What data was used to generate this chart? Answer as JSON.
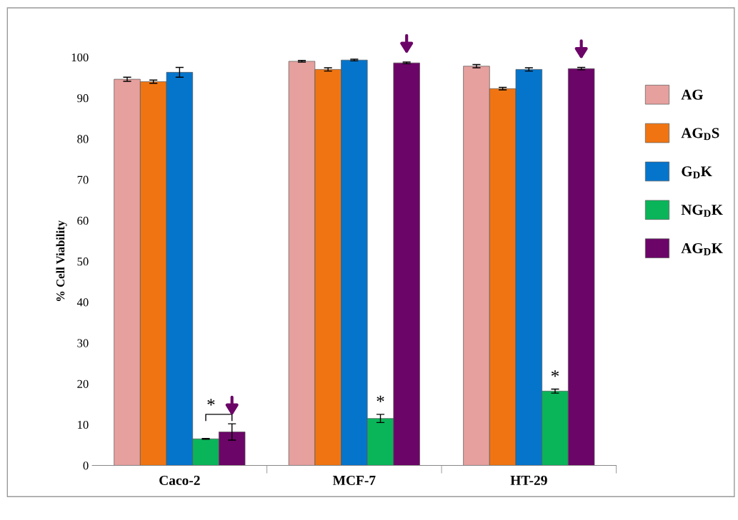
{
  "chart_data": {
    "type": "bar",
    "ylabel": "% Cell Viability",
    "categories": [
      "Caco-2",
      "MCF-7",
      "HT-29"
    ],
    "series": [
      {
        "name": "AG",
        "color": "#e6a09e",
        "values": [
          94.6,
          99.0,
          97.8
        ],
        "errors": [
          0.5,
          0.2,
          0.4
        ]
      },
      {
        "name": "AG$_{D}$S",
        "color": "#f07512",
        "values": [
          94.0,
          97.0,
          92.3
        ],
        "errors": [
          0.4,
          0.4,
          0.3
        ]
      },
      {
        "name": "G$_{D}$K",
        "color": "#0575cc",
        "values": [
          96.3,
          99.3,
          97.0
        ],
        "errors": [
          1.2,
          0.2,
          0.4
        ]
      },
      {
        "name": "NG$_{D}$K",
        "color": "#0ab55a",
        "values": [
          6.5,
          11.5,
          18.2
        ],
        "errors": [
          0.1,
          1.0,
          0.5
        ]
      },
      {
        "name": "AG$_{D}$K",
        "color": "#6c0568",
        "values": [
          8.2,
          98.6,
          97.2
        ],
        "errors": [
          2.0,
          0.2,
          0.3
        ]
      }
    ],
    "ylim": [
      0,
      100
    ],
    "yticks": [
      0,
      10,
      20,
      30,
      40,
      50,
      60,
      70,
      80,
      90,
      100
    ],
    "grid": false,
    "legend": "right",
    "annotations": [
      "*",
      "*",
      "*"
    ]
  }
}
